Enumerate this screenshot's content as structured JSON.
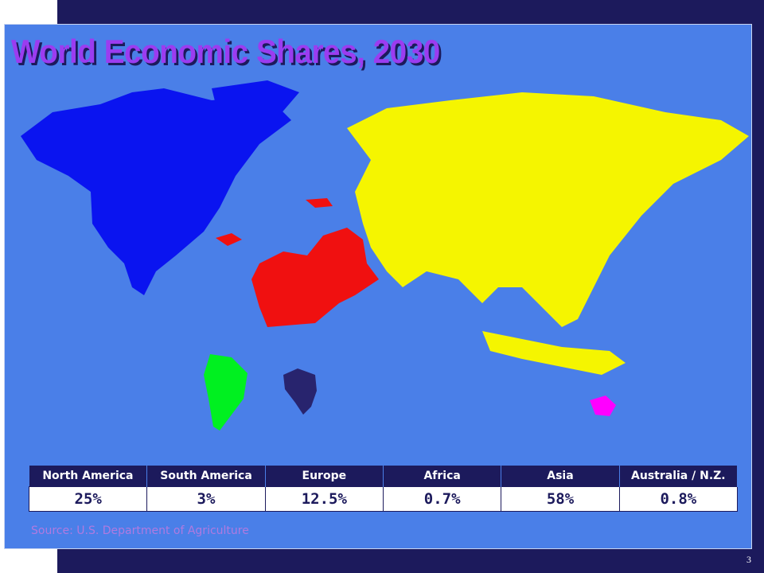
{
  "title": "World Economic Shares, 2030",
  "table": {
    "header": [
      "North America",
      "South America",
      "Europe",
      "Africa",
      "Asia",
      "Australia / N.Z."
    ],
    "values": [
      "25%",
      "3%",
      "12.5%",
      "0.7%",
      "58%",
      "0.8%"
    ]
  },
  "source": "Source: U.S. Department of Agriculture",
  "page_number": "3"
}
